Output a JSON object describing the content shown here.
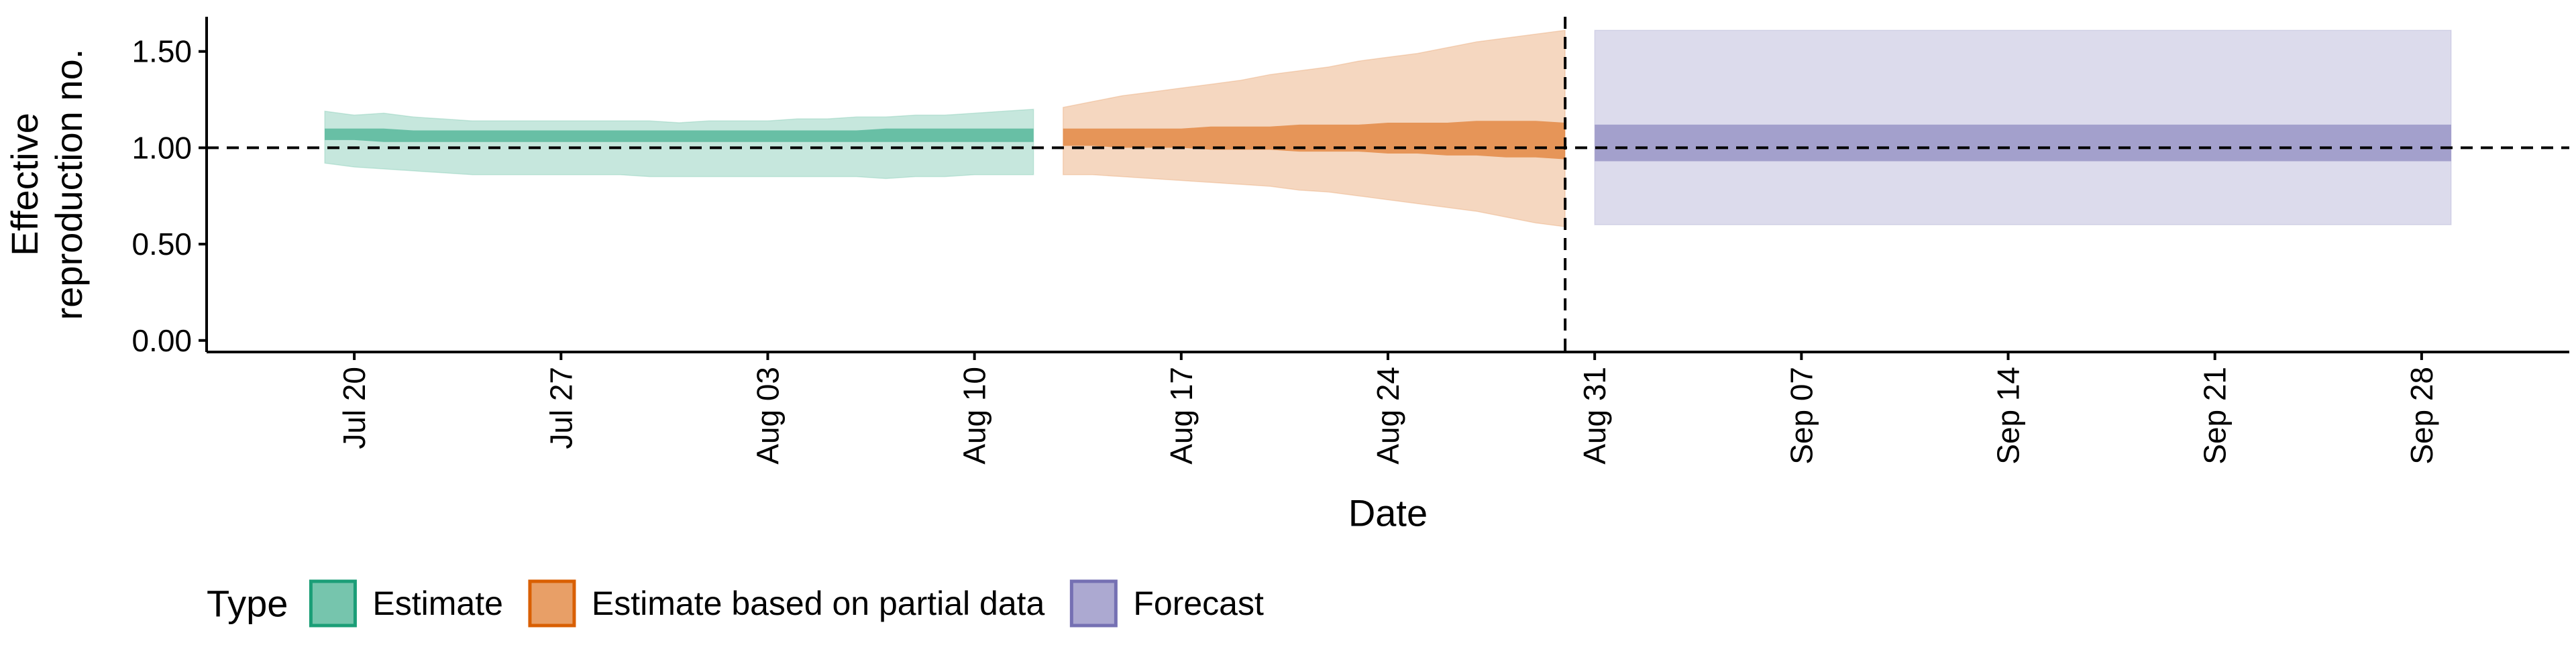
{
  "chart_data": {
    "type": "area",
    "title": "",
    "xlabel": "Date",
    "ylabel": [
      "Effective",
      "reproduction no."
    ],
    "x_ticks": [
      "Jul 20",
      "Jul 27",
      "Aug 03",
      "Aug 10",
      "Aug 17",
      "Aug 24",
      "Aug 31",
      "Sep 07",
      "Sep 14",
      "Sep 21",
      "Sep 28"
    ],
    "x_tick_dates": [
      "2020-07-20",
      "2020-07-27",
      "2020-08-03",
      "2020-08-10",
      "2020-08-17",
      "2020-08-24",
      "2020-08-31",
      "2020-09-07",
      "2020-09-14",
      "2020-09-21",
      "2020-09-28"
    ],
    "xlim": [
      "2020-07-15",
      "2020-10-03"
    ],
    "y_ticks": [
      0.0,
      0.5,
      1.0,
      1.5
    ],
    "y_tick_labels": [
      "0.00",
      "0.50",
      "1.00",
      "1.50"
    ],
    "ylim": [
      -0.06,
      1.68
    ],
    "grid": false,
    "reference_hline": 1.0,
    "reference_vline": "2020-08-30",
    "legend": {
      "title": "Type",
      "position": "bottom-left",
      "items": [
        "Estimate",
        "Estimate based on partial data",
        "Forecast"
      ]
    },
    "series": [
      {
        "name": "Estimate",
        "color": "#1b9e77",
        "dates": [
          "2020-07-19",
          "2020-07-20",
          "2020-07-21",
          "2020-07-22",
          "2020-07-23",
          "2020-07-24",
          "2020-07-25",
          "2020-07-26",
          "2020-07-27",
          "2020-07-28",
          "2020-07-29",
          "2020-07-30",
          "2020-07-31",
          "2020-08-01",
          "2020-08-02",
          "2020-08-03",
          "2020-08-04",
          "2020-08-05",
          "2020-08-06",
          "2020-08-07",
          "2020-08-08",
          "2020-08-09",
          "2020-08-10",
          "2020-08-11",
          "2020-08-12"
        ],
        "outer_lower": [
          0.92,
          0.9,
          0.89,
          0.88,
          0.87,
          0.86,
          0.86,
          0.86,
          0.86,
          0.86,
          0.86,
          0.85,
          0.85,
          0.85,
          0.85,
          0.85,
          0.85,
          0.85,
          0.85,
          0.84,
          0.85,
          0.85,
          0.86,
          0.86,
          0.86
        ],
        "outer_upper": [
          1.19,
          1.17,
          1.18,
          1.16,
          1.15,
          1.14,
          1.14,
          1.14,
          1.14,
          1.14,
          1.14,
          1.14,
          1.13,
          1.14,
          1.14,
          1.14,
          1.15,
          1.15,
          1.16,
          1.16,
          1.17,
          1.17,
          1.18,
          1.19,
          1.2
        ],
        "inner_lower": [
          1.04,
          1.04,
          1.03,
          1.03,
          1.03,
          1.03,
          1.03,
          1.03,
          1.03,
          1.03,
          1.03,
          1.03,
          1.03,
          1.03,
          1.03,
          1.03,
          1.03,
          1.03,
          1.03,
          1.03,
          1.03,
          1.03,
          1.03,
          1.03,
          1.03
        ],
        "inner_upper": [
          1.1,
          1.1,
          1.1,
          1.09,
          1.09,
          1.09,
          1.09,
          1.09,
          1.09,
          1.09,
          1.09,
          1.09,
          1.09,
          1.09,
          1.09,
          1.09,
          1.09,
          1.09,
          1.09,
          1.1,
          1.1,
          1.1,
          1.1,
          1.1,
          1.1
        ]
      },
      {
        "name": "Estimate based on partial data",
        "color": "#d95f02",
        "dates": [
          "2020-08-13",
          "2020-08-14",
          "2020-08-15",
          "2020-08-16",
          "2020-08-17",
          "2020-08-18",
          "2020-08-19",
          "2020-08-20",
          "2020-08-21",
          "2020-08-22",
          "2020-08-23",
          "2020-08-24",
          "2020-08-25",
          "2020-08-26",
          "2020-08-27",
          "2020-08-28",
          "2020-08-29",
          "2020-08-30"
        ],
        "outer_lower": [
          0.86,
          0.86,
          0.85,
          0.84,
          0.83,
          0.82,
          0.81,
          0.8,
          0.78,
          0.77,
          0.75,
          0.73,
          0.71,
          0.69,
          0.67,
          0.64,
          0.61,
          0.59
        ],
        "outer_upper": [
          1.21,
          1.24,
          1.27,
          1.29,
          1.31,
          1.33,
          1.35,
          1.38,
          1.4,
          1.42,
          1.45,
          1.47,
          1.49,
          1.52,
          1.55,
          1.57,
          1.59,
          1.61
        ],
        "inner_lower": [
          1.01,
          1.01,
          1.0,
          1.0,
          1.0,
          0.99,
          0.99,
          0.99,
          0.98,
          0.98,
          0.98,
          0.97,
          0.97,
          0.96,
          0.96,
          0.95,
          0.95,
          0.94
        ],
        "inner_upper": [
          1.1,
          1.1,
          1.1,
          1.1,
          1.1,
          1.11,
          1.11,
          1.11,
          1.12,
          1.12,
          1.12,
          1.13,
          1.13,
          1.13,
          1.14,
          1.14,
          1.14,
          1.13
        ]
      },
      {
        "name": "Forecast",
        "color": "#7570b3",
        "dates": [
          "2020-08-31",
          "2020-09-29"
        ],
        "outer_lower": [
          0.6,
          0.6
        ],
        "outer_upper": [
          1.61,
          1.61
        ],
        "inner_lower": [
          0.93,
          0.93
        ],
        "inner_upper": [
          1.12,
          1.12
        ]
      }
    ]
  }
}
